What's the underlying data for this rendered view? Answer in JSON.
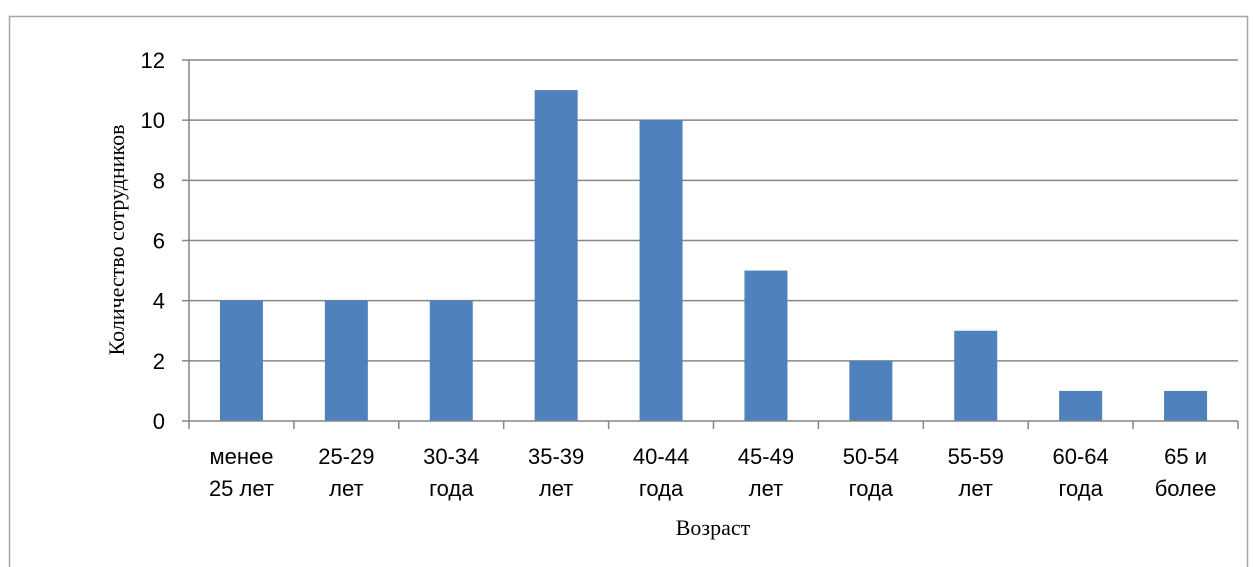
{
  "chart_data": {
    "type": "bar",
    "categories": [
      [
        "менее",
        "25 лет"
      ],
      [
        "25-29",
        "лет"
      ],
      [
        "30-34",
        "года"
      ],
      [
        "35-39",
        "лет"
      ],
      [
        "40-44",
        "года"
      ],
      [
        "45-49",
        "лет"
      ],
      [
        "50-54",
        "года"
      ],
      [
        "55-59",
        "лет"
      ],
      [
        "60-64",
        "года"
      ],
      [
        "65 и",
        "более"
      ]
    ],
    "values": [
      4,
      4,
      4,
      11,
      10,
      5,
      2,
      3,
      1,
      1
    ],
    "xlabel": "Возраст",
    "ylabel": "Количество сотрудников",
    "ylim": [
      0,
      12
    ],
    "yticks": [
      0,
      2,
      4,
      6,
      8,
      10,
      12
    ],
    "grid": true,
    "bar_color": "#4f81bd",
    "grid_color": "#868686"
  }
}
